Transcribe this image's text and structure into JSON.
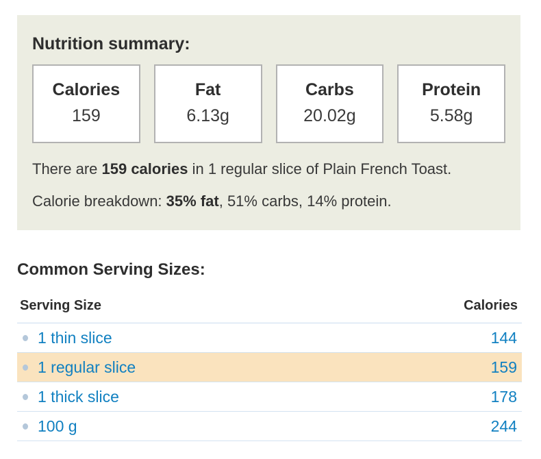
{
  "summary": {
    "title": "Nutrition summary:",
    "boxes": [
      {
        "label": "Calories",
        "value": "159"
      },
      {
        "label": "Fat",
        "value": "6.13g"
      },
      {
        "label": "Carbs",
        "value": "20.02g"
      },
      {
        "label": "Protein",
        "value": "5.58g"
      }
    ],
    "calories_sentence": {
      "prefix": "There are ",
      "bold": "159 calories",
      "suffix": " in 1 regular slice of Plain French Toast."
    },
    "breakdown_sentence": {
      "prefix": "Calorie breakdown: ",
      "bold": "35% fat",
      "suffix": ", 51% carbs, 14% protein."
    }
  },
  "serving_sizes": {
    "title": "Common Serving Sizes:",
    "columns": {
      "serving": "Serving Size",
      "calories": "Calories"
    },
    "rows": [
      {
        "label": "1 thin slice",
        "calories": "144",
        "highlighted": false
      },
      {
        "label": "1 regular slice",
        "calories": "159",
        "highlighted": true
      },
      {
        "label": "1 thick slice",
        "calories": "178",
        "highlighted": false
      },
      {
        "label": "100 g",
        "calories": "244",
        "highlighted": false
      }
    ]
  },
  "colors": {
    "panel_bg": "#ecede2",
    "box_border": "#b2b2b2",
    "link_blue": "#1180c1",
    "highlight_bg": "#fae3be",
    "divider": "#d3e3f1",
    "bullet": "#b4c7da",
    "heading_text": "#2e2e2e"
  }
}
